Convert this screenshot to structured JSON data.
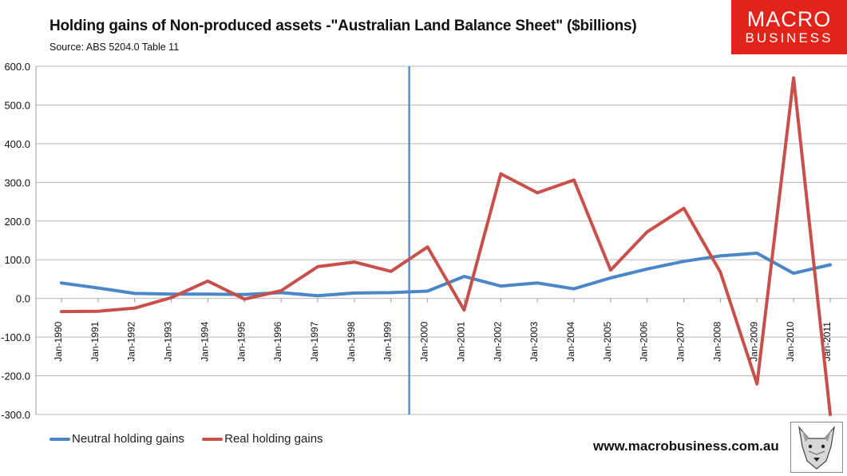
{
  "header": {
    "title": "Holding gains of Non-produced assets  -\"Australian Land Balance Sheet\" ($billions)",
    "subtitle": "Source: ABS 5204.0 Table 11"
  },
  "logo": {
    "line1": "MACRO",
    "line2": "BUSINESS",
    "color": "#e2231a"
  },
  "footer": {
    "website": "www.macrobusiness.com.au",
    "emblem_icon": "wolf-head-icon"
  },
  "chart_data": {
    "type": "line",
    "title": "Holding gains of Non-produced assets  -\"Australian Land Balance Sheet\" ($billions)",
    "categories": [
      "Jan-1990",
      "Jan-1991",
      "Jan-1992",
      "Jan-1993",
      "Jan-1994",
      "Jan-1995",
      "Jan-1996",
      "Jan-1997",
      "Jan-1998",
      "Jan-1999",
      "Jan-2000",
      "Jan-2001",
      "Jan-2002",
      "Jan-2003",
      "Jan-2004",
      "Jan-2005",
      "Jan-2006",
      "Jan-2007",
      "Jan-2008",
      "Jan-2009",
      "Jan-2010",
      "Jan-2011"
    ],
    "ylim": [
      -300,
      600
    ],
    "yticks": [
      "-300.0",
      "-200.0",
      "-100.0",
      "0.0",
      "100.0",
      "200.0",
      "300.0",
      "400.0",
      "500.0",
      "600.0"
    ],
    "grid": true,
    "legend_position": "bottom-left",
    "vertical_marker_x": "Jan-1999/Jan-2000",
    "series": [
      {
        "name": "Neutral holding gains",
        "color": "#4a86c8",
        "values": [
          40,
          27,
          13,
          11,
          11,
          10,
          15,
          7,
          14,
          15,
          19,
          57,
          32,
          40,
          25,
          53,
          76,
          96,
          110,
          117,
          65,
          87
        ]
      },
      {
        "name": "Real holding gains",
        "color": "#c9504a",
        "values": [
          -34,
          -33,
          -25,
          2,
          45,
          -2,
          20,
          82,
          94,
          70,
          133,
          -30,
          322,
          273,
          306,
          73,
          172,
          233,
          68,
          -221,
          570,
          -300
        ]
      }
    ]
  }
}
